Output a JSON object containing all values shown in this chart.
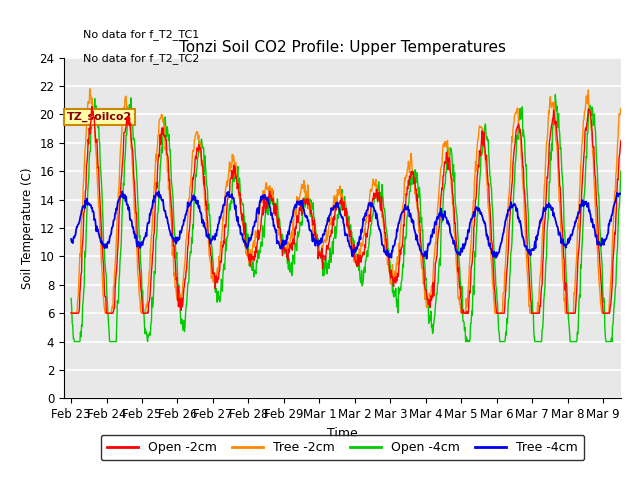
{
  "title": "Tonzi Soil CO2 Profile: Upper Temperatures",
  "ylabel": "Soil Temperature (C)",
  "xlabel": "Time",
  "annotations": [
    "No data for f_T2_TC1",
    "No data for f_T2_TC2"
  ],
  "legend_box_label": "TZ_soilco2",
  "ylim": [
    0,
    24
  ],
  "background_color": "#ffffff",
  "plot_bg_color": "#e8e8e8",
  "grid_color": "#ffffff",
  "colors": {
    "open_2cm": "#ff0000",
    "tree_2cm": "#ff8800",
    "open_4cm": "#00cc00",
    "tree_4cm": "#0000ee"
  },
  "legend_labels": [
    "Open -2cm",
    "Tree -2cm",
    "Open -4cm",
    "Tree -4cm"
  ],
  "x_tick_labels": [
    "Feb 23",
    "Feb 24",
    "Feb 25",
    "Feb 26",
    "Feb 27",
    "Feb 28",
    "Feb 29",
    "Mar 1",
    "Mar 2",
    "Mar 3",
    "Mar 4",
    "Mar 5",
    "Mar 6",
    "Mar 7",
    "Mar 8",
    "Mar 9"
  ],
  "yticks": [
    0,
    2,
    4,
    6,
    8,
    10,
    12,
    14,
    16,
    18,
    20,
    22,
    24
  ]
}
